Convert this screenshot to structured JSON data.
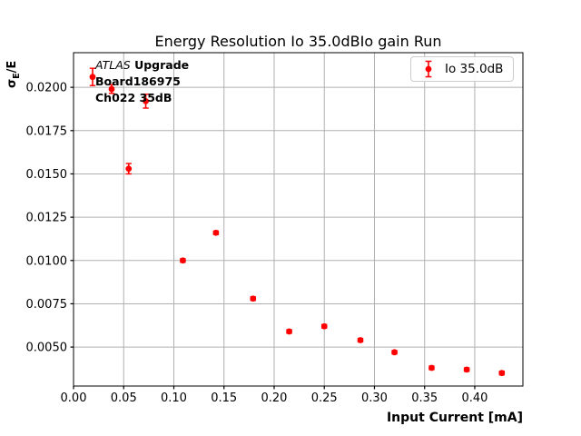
{
  "chart_data": {
    "type": "scatter",
    "title": "Energy Resolution Io 35.0dBIo gain Run",
    "xlabel": "Input Current [mA]",
    "ylabel": "σE/E",
    "ylabel_parts": {
      "sigma": "σ",
      "subscript": "E",
      "rest": "/E"
    },
    "annotation": {
      "line1_italic": "ATLAS",
      "line1_bold": " Upgrade",
      "line2": "Board186975",
      "line3": "Ch022 35dB"
    },
    "legend": {
      "label": "Io 35.0dB",
      "position": "upper right"
    },
    "series": [
      {
        "name": "Io 35.0dB",
        "color": "#ff0000",
        "marker": "o",
        "x": [
          0.019,
          0.038,
          0.055,
          0.072,
          0.109,
          0.142,
          0.179,
          0.215,
          0.25,
          0.286,
          0.32,
          0.357,
          0.392,
          0.427
        ],
        "y": [
          0.0206,
          0.0199,
          0.0153,
          0.0192,
          0.01,
          0.0116,
          0.0078,
          0.0059,
          0.0062,
          0.0054,
          0.0047,
          0.0038,
          0.0037,
          0.0035
        ],
        "yerr": [
          0.0005,
          0.00025,
          0.0003,
          0.0004,
          0.0001,
          0.0001,
          0.0001,
          0.0001,
          0.0001,
          0.0001,
          0.0001,
          0.0001,
          0.0001,
          0.0001
        ]
      }
    ],
    "xlim": [
      0.0,
      0.448
    ],
    "ylim": [
      0.00275,
      0.022
    ],
    "xticks": [
      0.0,
      0.05,
      0.1,
      0.15,
      0.2,
      0.25,
      0.3,
      0.35,
      0.4
    ],
    "xtick_labels": [
      "0.00",
      "0.05",
      "0.10",
      "0.15",
      "0.20",
      "0.25",
      "0.30",
      "0.35",
      "0.40"
    ],
    "yticks": [
      0.005,
      0.0075,
      0.01,
      0.0125,
      0.015,
      0.0175,
      0.02
    ],
    "ytick_labels": [
      "0.0050",
      "0.0075",
      "0.0100",
      "0.0125",
      "0.0150",
      "0.0175",
      "0.0200"
    ],
    "grid": true,
    "colors": {
      "point": "#ff0000",
      "grid": "#b0b0b0",
      "spine": "#000000",
      "text": "#000000",
      "legend_border": "#cccccc",
      "background": "#ffffff"
    }
  }
}
